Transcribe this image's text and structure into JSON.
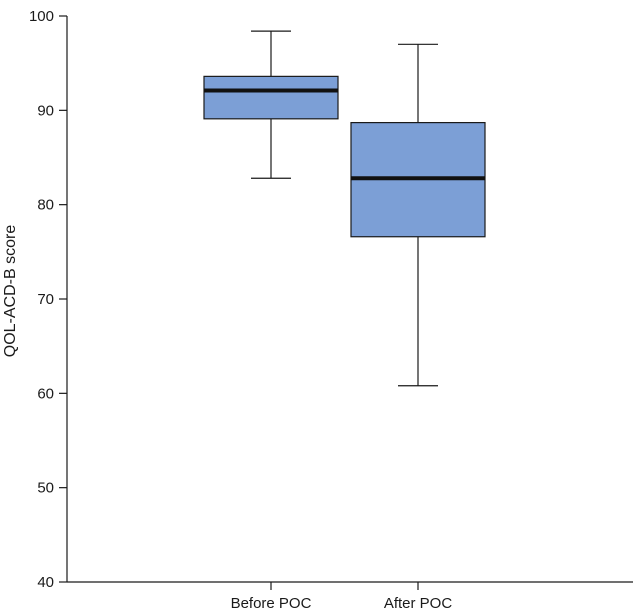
{
  "chart_data": {
    "type": "box",
    "ylabel": "QOL-ACD-B score",
    "xlabel": "",
    "ylim": [
      40,
      100
    ],
    "yticks": [
      40,
      50,
      60,
      70,
      80,
      90,
      100
    ],
    "categories": [
      "Before POC",
      "After POC"
    ],
    "boxes": [
      {
        "category": "Before POC",
        "whisker_low": 82.8,
        "q1": 89.1,
        "median": 92.1,
        "q3": 93.6,
        "whisker_high": 98.4
      },
      {
        "category": "After POC",
        "whisker_low": 60.8,
        "q1": 76.6,
        "median": 82.8,
        "q3": 88.7,
        "whisker_high": 97.0
      }
    ],
    "box_fill": "#7c9fd6",
    "box_edge": "#1a1a1a",
    "median_color": "#111111",
    "grid": false,
    "legend": "none"
  }
}
